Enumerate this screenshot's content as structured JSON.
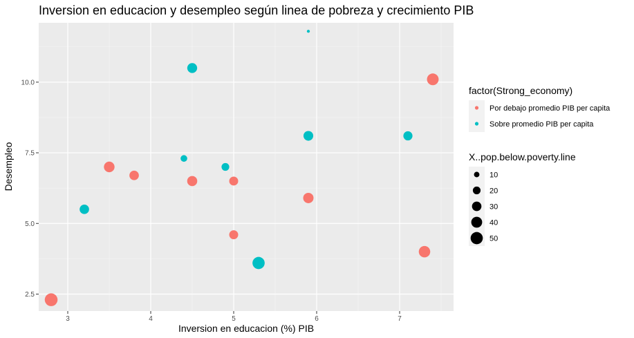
{
  "chart_data": {
    "type": "scatter",
    "title": "Inversion en educacion y desempleo según linea de pobreza y crecimiento PIB",
    "xlabel": "Inversion en educacion (%) PIB",
    "ylabel": "Desempleo",
    "xlim": [
      2.65,
      7.65
    ],
    "ylim": [
      1.9,
      12.1
    ],
    "x_ticks": [
      3,
      4,
      5,
      6,
      7
    ],
    "x_tick_labels": [
      "3",
      "4",
      "5",
      "6",
      "7"
    ],
    "y_ticks": [
      2.5,
      5.0,
      7.5,
      10.0
    ],
    "y_tick_labels": [
      "2.5",
      "5.0",
      "7.5",
      "10.0"
    ],
    "grid": true,
    "legend_placement": "right",
    "color_legend": {
      "title": "factor(Strong_economy)",
      "entries": [
        {
          "label": "Por debajo promedio PIB per capita",
          "color": "#F8766D"
        },
        {
          "label": "Sobre promedio PIB per capita",
          "color": "#00BFC4"
        }
      ]
    },
    "size_legend": {
      "title": "X..pop.below.poverty.line",
      "values": [
        10,
        20,
        30,
        40,
        50
      ],
      "labels": [
        "10",
        "20",
        "30",
        "40",
        "50"
      ]
    },
    "size_range": [
      3,
      58
    ],
    "series": [
      {
        "name": "Por debajo promedio PIB per capita",
        "color": "#F8766D",
        "points": [
          {
            "x": 2.8,
            "y": 2.3,
            "size": 55
          },
          {
            "x": 3.5,
            "y": 7.0,
            "size": 38
          },
          {
            "x": 3.8,
            "y": 6.7,
            "size": 30
          },
          {
            "x": 4.5,
            "y": 6.5,
            "size": 34
          },
          {
            "x": 5.0,
            "y": 6.5,
            "size": 27
          },
          {
            "x": 5.0,
            "y": 4.6,
            "size": 27
          },
          {
            "x": 5.9,
            "y": 5.9,
            "size": 36
          },
          {
            "x": 7.3,
            "y": 4.0,
            "size": 44
          },
          {
            "x": 7.4,
            "y": 10.1,
            "size": 46
          }
        ]
      },
      {
        "name": "Sobre promedio PIB per capita",
        "color": "#00BFC4",
        "points": [
          {
            "x": 3.2,
            "y": 5.5,
            "size": 30
          },
          {
            "x": 4.4,
            "y": 7.3,
            "size": 15
          },
          {
            "x": 4.5,
            "y": 10.5,
            "size": 33
          },
          {
            "x": 4.9,
            "y": 7.0,
            "size": 20
          },
          {
            "x": 5.3,
            "y": 3.6,
            "size": 50
          },
          {
            "x": 5.9,
            "y": 8.1,
            "size": 32
          },
          {
            "x": 5.9,
            "y": 11.8,
            "size": 3
          },
          {
            "x": 7.1,
            "y": 8.1,
            "size": 28
          }
        ]
      }
    ]
  }
}
